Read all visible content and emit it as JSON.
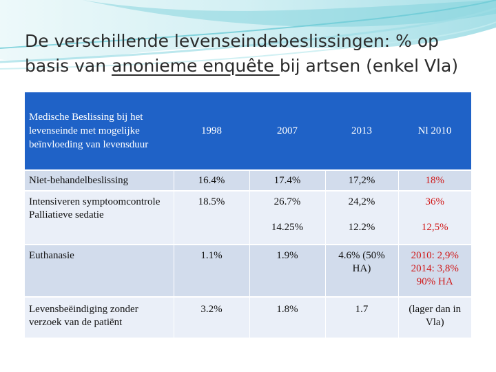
{
  "title": {
    "part1": "De verschillende levenseindebeslissingen: % op basis van ",
    "underlined": "anonieme enquête ",
    "part2": "bij artsen (enkel Vla)"
  },
  "table": {
    "headers": [
      "Medische Beslissing bij het levenseinde met mogelijke beïnvloeding van levensduur",
      "1998",
      "2007",
      "2013",
      "Nl 2010"
    ],
    "rows": [
      {
        "label": "Niet-behandelbeslissing",
        "v1998": "16.4%",
        "v2007": "17.4%",
        "v2013": "17,2%",
        "nl": "18%"
      },
      {
        "label": "Intensiveren symptoomcontrole",
        "label2": "Palliatieve sedatie",
        "v1998": "18.5%",
        "v2007": "26.7%",
        "v2007b": "14.25%",
        "v2013": "24,2%",
        "v2013b": "12.2%",
        "nl": "36%",
        "nlb": "12,5%"
      },
      {
        "label": "Euthanasie",
        "v1998": "1.1%",
        "v2007": "1.9%",
        "v2013": "4.6% (50% HA)",
        "nl": "2010: 2,9% 2014: 3,8% 90% HA"
      },
      {
        "label": "Levensbeëindiging zonder verzoek van de patiënt",
        "v1998": "3.2%",
        "v2007": "1.8%",
        "v2013": "1.7",
        "nl": "(lager dan in Vla)"
      }
    ]
  },
  "colors": {
    "header_bg": "#1f62c7",
    "row_shade": "#d2dcec",
    "row_light": "#eaeff8",
    "highlight": "#d01818"
  },
  "decoration": "turquoise-wave-banner"
}
